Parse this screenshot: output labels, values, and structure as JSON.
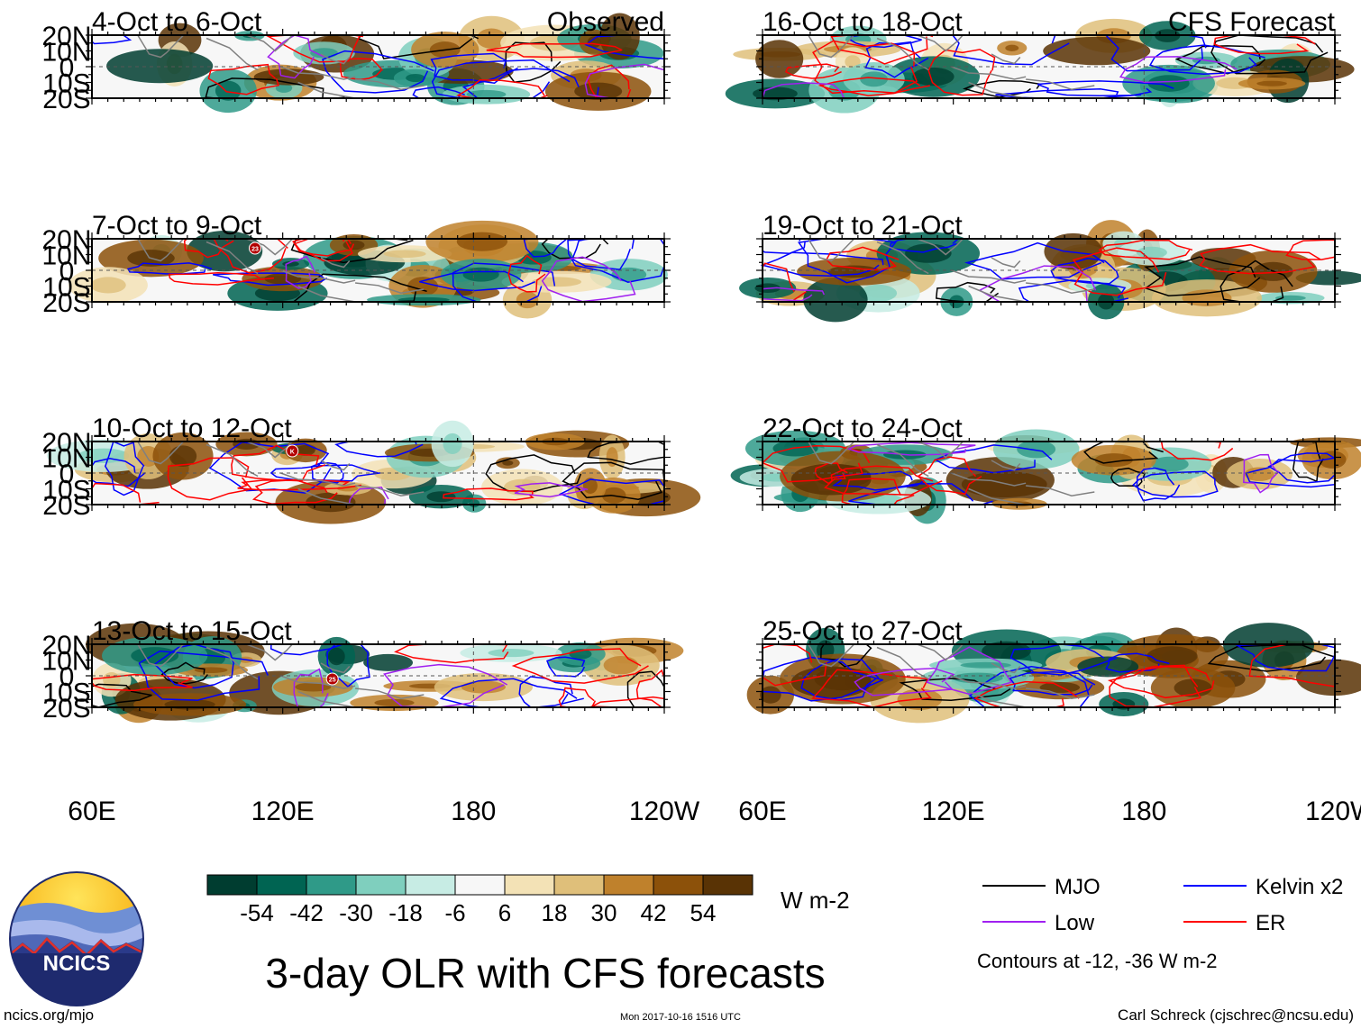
{
  "chart_data": {
    "type": "heatmap",
    "title": "3-day OLR with CFS forecasts",
    "units": "W m-2",
    "lat_ticks": [
      "20N",
      "10N",
      "0",
      "10S",
      "20S"
    ],
    "lon_ticks": [
      "60E",
      "120E",
      "180",
      "120W"
    ],
    "lon_range": [
      60,
      240
    ],
    "lat_range": [
      -20,
      20
    ],
    "columns": [
      {
        "label": "Observed",
        "panels": [
          {
            "period": "4-Oct to 6-Oct"
          },
          {
            "period": "7-Oct to 9-Oct",
            "storm": "23"
          },
          {
            "period": "10-Oct to 12-Oct",
            "storm": "K"
          },
          {
            "period": "13-Oct to 15-Oct",
            "storm": "25"
          }
        ]
      },
      {
        "label": "CFS Forecast",
        "panels": [
          {
            "period": "16-Oct to 18-Oct"
          },
          {
            "period": "19-Oct to 21-Oct"
          },
          {
            "period": "22-Oct to 24-Oct"
          },
          {
            "period": "25-Oct to 27-Oct"
          }
        ]
      }
    ],
    "colorbar": {
      "labels": [
        "-54",
        "-42",
        "-30",
        "-18",
        "-6",
        "6",
        "18",
        "30",
        "42",
        "54"
      ],
      "colors": [
        "#003d30",
        "#006452",
        "#2f9a88",
        "#7fcfbe",
        "#c7ece4",
        "#f7f7f7",
        "#f3e2b6",
        "#dfbf7a",
        "#bf812c",
        "#8c510a",
        "#593305"
      ]
    },
    "legend": [
      {
        "name": "MJO",
        "color": "#000000"
      },
      {
        "name": "Kelvin x2",
        "color": "#0000ff"
      },
      {
        "name": "Low",
        "color": "#a020f0"
      },
      {
        "name": "ER",
        "color": "#ff0000"
      }
    ],
    "contour_note": "Contours at -12, -36 W m-2"
  },
  "footer": {
    "logo_text": "NCICS",
    "site": "ncics.org/mjo",
    "timestamp": "Mon 2017-10-16 1516 UTC",
    "author": "Carl Schreck (cjschrec@ncsu.edu)"
  }
}
